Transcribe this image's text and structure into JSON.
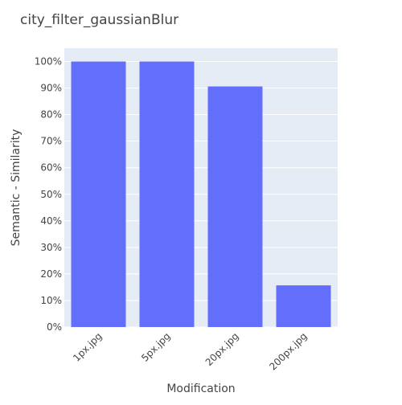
{
  "chart_data": {
    "type": "bar",
    "title": "city_filter_gaussianBlur",
    "xlabel": "Modification",
    "ylabel": "Semantic - Similarity",
    "categories": [
      "1px.jpg",
      "5px.jpg",
      "20px.jpg",
      "200px.jpg"
    ],
    "values": [
      1.0,
      1.0,
      0.906,
      0.157
    ],
    "ylim": [
      0,
      1.05
    ],
    "y_ticks": [
      0,
      0.1,
      0.2,
      0.3,
      0.4,
      0.5,
      0.6,
      0.7,
      0.8,
      0.9,
      1.0
    ],
    "y_tick_labels": [
      "0%",
      "10%",
      "20%",
      "30%",
      "40%",
      "50%",
      "60%",
      "70%",
      "80%",
      "90%",
      "100%"
    ],
    "y_format": "percent",
    "grid": true,
    "colors": {
      "bar": "#636efa",
      "plot_background": "#e5ecf6",
      "grid": "#ffffff",
      "text": "#444444",
      "title": "#444444"
    }
  }
}
